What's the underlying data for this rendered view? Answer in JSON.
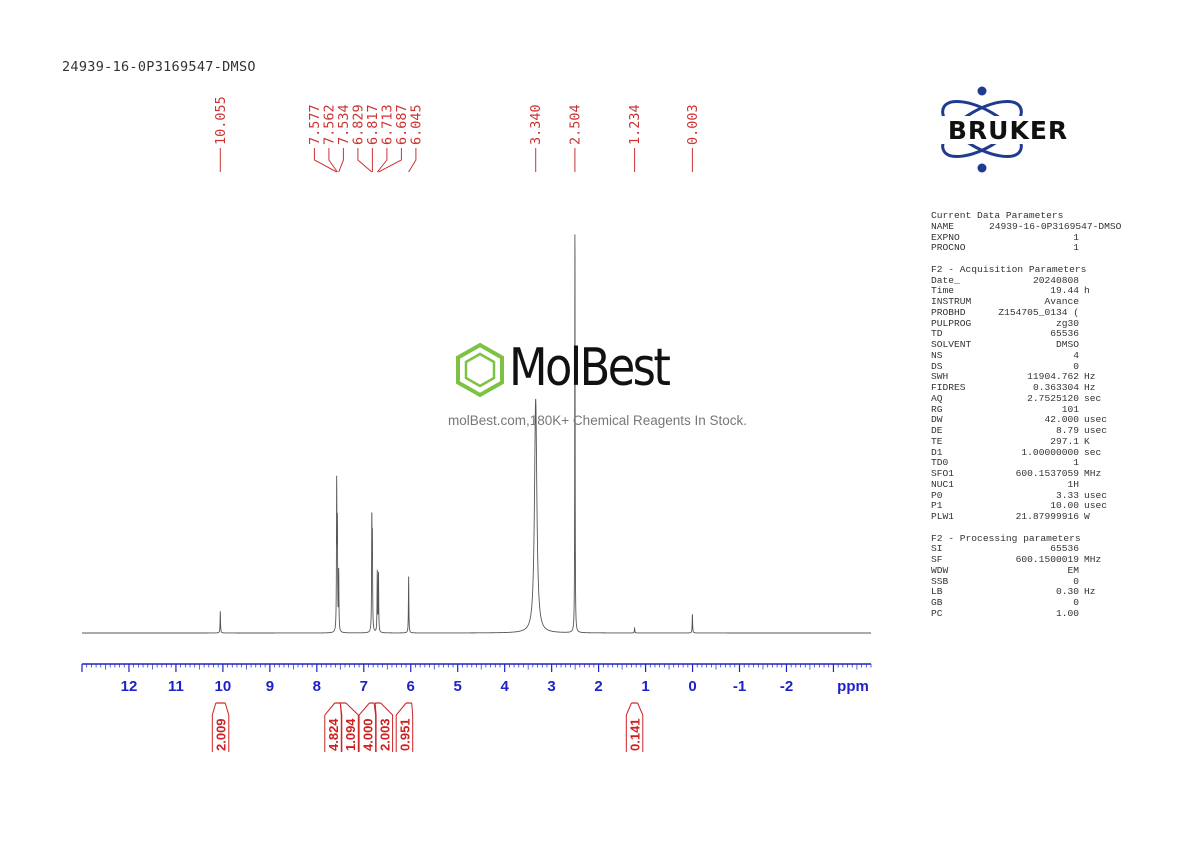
{
  "sample_name": "24939-16-0P3169547-DMSO",
  "logo": {
    "brand": "BRUKER",
    "icon": "bruker-atom-icon"
  },
  "watermark": {
    "name": "MolBest",
    "tagline": "molBest.com,180K+ Chemical Reagents In Stock.",
    "icon": "benzene-ring-icon",
    "color": "#7dc243"
  },
  "colors": {
    "axis": "#1e22c8",
    "peak_labels": "#cc3333",
    "integral": "#cc2222",
    "spectrum": "#555555"
  },
  "params": [
    {
      "title": "Current Data Parameters",
      "rows": [
        [
          "NAME",
          "24939-16-0P3169547-DMSO",
          ""
        ],
        [
          "EXPNO",
          "1",
          ""
        ],
        [
          "PROCNO",
          "1",
          ""
        ]
      ]
    },
    {
      "title": "F2 - Acquisition Parameters",
      "rows": [
        [
          "Date_",
          "20240808",
          ""
        ],
        [
          "Time",
          "19.44",
          "h"
        ],
        [
          "INSTRUM",
          "Avance",
          ""
        ],
        [
          "PROBHD",
          "Z154705_0134 (",
          ""
        ],
        [
          "PULPROG",
          "zg30",
          ""
        ],
        [
          "TD",
          "65536",
          ""
        ],
        [
          "SOLVENT",
          "DMSO",
          ""
        ],
        [
          "NS",
          "4",
          ""
        ],
        [
          "DS",
          "0",
          ""
        ],
        [
          "SWH",
          "11904.762",
          "Hz"
        ],
        [
          "FIDRES",
          "0.363304",
          "Hz"
        ],
        [
          "AQ",
          "2.7525120",
          "sec"
        ],
        [
          "RG",
          "101",
          ""
        ],
        [
          "DW",
          "42.000",
          "usec"
        ],
        [
          "DE",
          "8.79",
          "usec"
        ],
        [
          "TE",
          "297.1",
          "K"
        ],
        [
          "D1",
          "1.00000000",
          "sec"
        ],
        [
          "TD0",
          "1",
          ""
        ],
        [
          "SFO1",
          "600.1537059",
          "MHz"
        ],
        [
          "NUC1",
          "1H",
          ""
        ],
        [
          "P0",
          "3.33",
          "usec"
        ],
        [
          "P1",
          "10.00",
          "usec"
        ],
        [
          "PLW1",
          "21.87999916",
          "W"
        ]
      ]
    },
    {
      "title": "F2 - Processing parameters",
      "rows": [
        [
          "SI",
          "65536",
          ""
        ],
        [
          "SF",
          "600.1500019",
          "MHz"
        ],
        [
          "WDW",
          "EM",
          ""
        ],
        [
          "SSB",
          "0",
          ""
        ],
        [
          "LB",
          "0.30",
          "Hz"
        ],
        [
          "GB",
          "0",
          ""
        ],
        [
          "PC",
          "1.00",
          ""
        ]
      ]
    }
  ],
  "chart_data": {
    "type": "line",
    "title": "24939-16-0P3169547-DMSO",
    "xlabel": "ppm",
    "ylabel": "",
    "xlim": [
      13.0,
      -3.8
    ],
    "x_reversed": true,
    "x_ticks": [
      12,
      11,
      10,
      9,
      8,
      7,
      6,
      5,
      4,
      3,
      2,
      1,
      0,
      -1,
      -2
    ],
    "grid": false,
    "peak_labels": [
      "10.055",
      "7.577",
      "7.562",
      "7.534",
      "6.829",
      "6.817",
      "6.713",
      "6.687",
      "6.045",
      "3.340",
      "2.504",
      "1.234",
      "0.003"
    ],
    "peaks": [
      {
        "ppm": 10.055,
        "height": 0.052
      },
      {
        "ppm": 7.577,
        "height": 0.35
      },
      {
        "ppm": 7.562,
        "height": 0.24
      },
      {
        "ppm": 7.534,
        "height": 0.145
      },
      {
        "ppm": 6.829,
        "height": 0.262
      },
      {
        "ppm": 6.817,
        "height": 0.204
      },
      {
        "ppm": 6.713,
        "height": 0.145
      },
      {
        "ppm": 6.687,
        "height": 0.14
      },
      {
        "ppm": 6.045,
        "height": 0.135
      },
      {
        "ppm": 3.34,
        "height": 0.56
      },
      {
        "ppm": 2.504,
        "height": 1.0
      },
      {
        "ppm": 1.234,
        "height": 0.012
      },
      {
        "ppm": 0.003,
        "height": 0.045
      }
    ],
    "integrals": [
      {
        "ppm_from": 10.15,
        "ppm_to": 9.95,
        "value": "2.009"
      },
      {
        "ppm_from": 7.62,
        "ppm_to": 7.5,
        "value": "4.824"
      },
      {
        "ppm_from": 7.5,
        "ppm_to": 7.38,
        "value": "1.094"
      },
      {
        "ppm_from": 6.88,
        "ppm_to": 6.78,
        "value": "4.000"
      },
      {
        "ppm_from": 6.76,
        "ppm_to": 6.64,
        "value": "2.003"
      },
      {
        "ppm_from": 6.1,
        "ppm_to": 5.98,
        "value": "0.951"
      },
      {
        "ppm_from": 1.3,
        "ppm_to": 1.17,
        "value": "0.141"
      }
    ]
  }
}
